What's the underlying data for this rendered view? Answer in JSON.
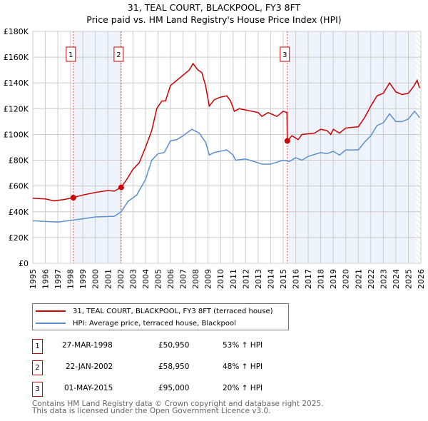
{
  "title": "31, TEAL COURT, BLACKPOOL, FY3 8FT",
  "subtitle": "Price paid vs. HM Land Registry's House Price Index (HPI)",
  "chart_data": {
    "type": "line",
    "title": "31, TEAL COURT, BLACKPOOL, FY3 8FT",
    "subtitle": "Price paid vs. HM Land Registry's House Price Index (HPI)",
    "xlim": [
      1995,
      2026
    ],
    "ylim": [
      0,
      180000
    ],
    "x_ticks": [
      "1995",
      "1996",
      "1997",
      "1998",
      "1999",
      "2000",
      "2001",
      "2002",
      "2003",
      "2004",
      "2005",
      "2006",
      "2007",
      "2008",
      "2009",
      "2010",
      "2011",
      "2012",
      "2013",
      "2014",
      "2015",
      "2016",
      "2017",
      "2018",
      "2019",
      "2020",
      "2021",
      "2022",
      "2023",
      "2024",
      "2025",
      "2026"
    ],
    "y_ticks": [
      {
        "v": 0,
        "l": "£0"
      },
      {
        "v": 20000,
        "l": "£20K"
      },
      {
        "v": 40000,
        "l": "£40K"
      },
      {
        "v": 60000,
        "l": "£60K"
      },
      {
        "v": 80000,
        "l": "£80K"
      },
      {
        "v": 100000,
        "l": "£100K"
      },
      {
        "v": 120000,
        "l": "£120K"
      },
      {
        "v": 140000,
        "l": "£140K"
      },
      {
        "v": 160000,
        "l": "£160K"
      },
      {
        "v": 180000,
        "l": "£180K"
      }
    ],
    "grid": true,
    "series": [
      {
        "name": "31, TEAL COURT, BLACKPOOL, FY3 8FT (terraced house)",
        "color": "#cc0000",
        "x": [
          1995,
          1996,
          1996.7,
          1997.5,
          1998.2,
          1999,
          2000,
          2001,
          2001.5,
          2002.06,
          2002.5,
          2003,
          2003.5,
          2004,
          2004.5,
          2004.9,
          2005.3,
          2005.6,
          2006,
          2006.5,
          2007,
          2007.5,
          2007.8,
          2008.2,
          2008.5,
          2008.8,
          2009.1,
          2009.5,
          2010,
          2010.5,
          2010.8,
          2011.1,
          2011.5,
          2012,
          2012.5,
          2013,
          2013.3,
          2013.8,
          2014.5,
          2015,
          2015.3,
          2015.33,
          2015.7,
          2016.2,
          2016.5,
          2017.5,
          2018,
          2018.5,
          2018.8,
          2019,
          2019.5,
          2020,
          2021,
          2021.5,
          2022,
          2022.5,
          2023,
          2023.5,
          2024,
          2024.5,
          2025,
          2025.4,
          2025.7,
          2025.9
        ],
        "y": [
          50500,
          50000,
          48500,
          49500,
          51000,
          53000,
          55000,
          56500,
          56000,
          59000,
          65000,
          73000,
          78000,
          90000,
          103000,
          120000,
          126000,
          126000,
          138000,
          142000,
          146000,
          150000,
          155000,
          150000,
          148000,
          138000,
          122000,
          127000,
          129000,
          130000,
          126000,
          118000,
          120000,
          119000,
          118000,
          117000,
          114000,
          117000,
          114000,
          118000,
          117000,
          95000,
          99000,
          96000,
          100000,
          101000,
          104000,
          103000,
          100000,
          104000,
          101000,
          105000,
          106000,
          113000,
          122000,
          130000,
          132000,
          140000,
          133000,
          131000,
          132000,
          137000,
          142000,
          136000
        ]
      },
      {
        "name": "HPI: Average price, terraced house, Blackpool",
        "color": "#5b8fd0",
        "x": [
          1995,
          1997,
          1998.2,
          2000,
          2001.5,
          2002.06,
          2002.6,
          2003.3,
          2004,
          2004.5,
          2005,
          2005.5,
          2006,
          2006.5,
          2007,
          2007.7,
          2008.3,
          2008.8,
          2009.1,
          2009.5,
          2010,
          2010.5,
          2011,
          2011.2,
          2012,
          2013,
          2013.3,
          2014,
          2015,
          2015.5,
          2016,
          2016.5,
          2017,
          2018,
          2018.5,
          2019,
          2019.5,
          2020,
          2021,
          2021.5,
          2022,
          2022.5,
          2023,
          2023.5,
          2024,
          2024.5,
          2025,
          2025.5,
          2025.9
        ],
        "y": [
          33000,
          32000,
          33500,
          36000,
          36500,
          40000,
          48000,
          53000,
          65000,
          80000,
          85000,
          86000,
          95000,
          96000,
          99000,
          104000,
          101000,
          94000,
          84000,
          86000,
          87000,
          88000,
          84000,
          80000,
          81000,
          78000,
          77000,
          77000,
          80000,
          79000,
          82000,
          80000,
          83000,
          86000,
          85000,
          87000,
          84000,
          88000,
          88000,
          94000,
          99000,
          107000,
          109000,
          116000,
          110000,
          110000,
          112000,
          118000,
          113000
        ]
      }
    ],
    "sales": [
      {
        "label": "1",
        "x": 1998.24,
        "y": 50950
      },
      {
        "label": "2",
        "x": 2002.06,
        "y": 58950
      },
      {
        "label": "3",
        "x": 2015.33,
        "y": 95000
      }
    ],
    "shaded_ranges": [
      [
        1998.24,
        2002.06
      ],
      [
        2015.33,
        2025.6
      ]
    ],
    "forecast_hatch_from": 2025.6,
    "legend_placement": "below"
  },
  "legend": [
    {
      "label": "31, TEAL COURT, BLACKPOOL, FY3 8FT (terraced house)",
      "color": "#cc0000"
    },
    {
      "label": "HPI: Average price, terraced house, Blackpool",
      "color": "#5b8fd0"
    }
  ],
  "transactions": [
    {
      "num": "1",
      "date": "27-MAR-1998",
      "price": "£50,950",
      "hpi": "53% ↑ HPI"
    },
    {
      "num": "2",
      "date": "22-JAN-2002",
      "price": "£58,950",
      "hpi": "48% ↑ HPI"
    },
    {
      "num": "3",
      "date": "01-MAY-2015",
      "price": "£95,000",
      "hpi": "20% ↑ HPI"
    }
  ],
  "footer": [
    "Contains HM Land Registry data © Crown copyright and database right 2025.",
    "This data is licensed under the Open Government Licence v3.0."
  ]
}
